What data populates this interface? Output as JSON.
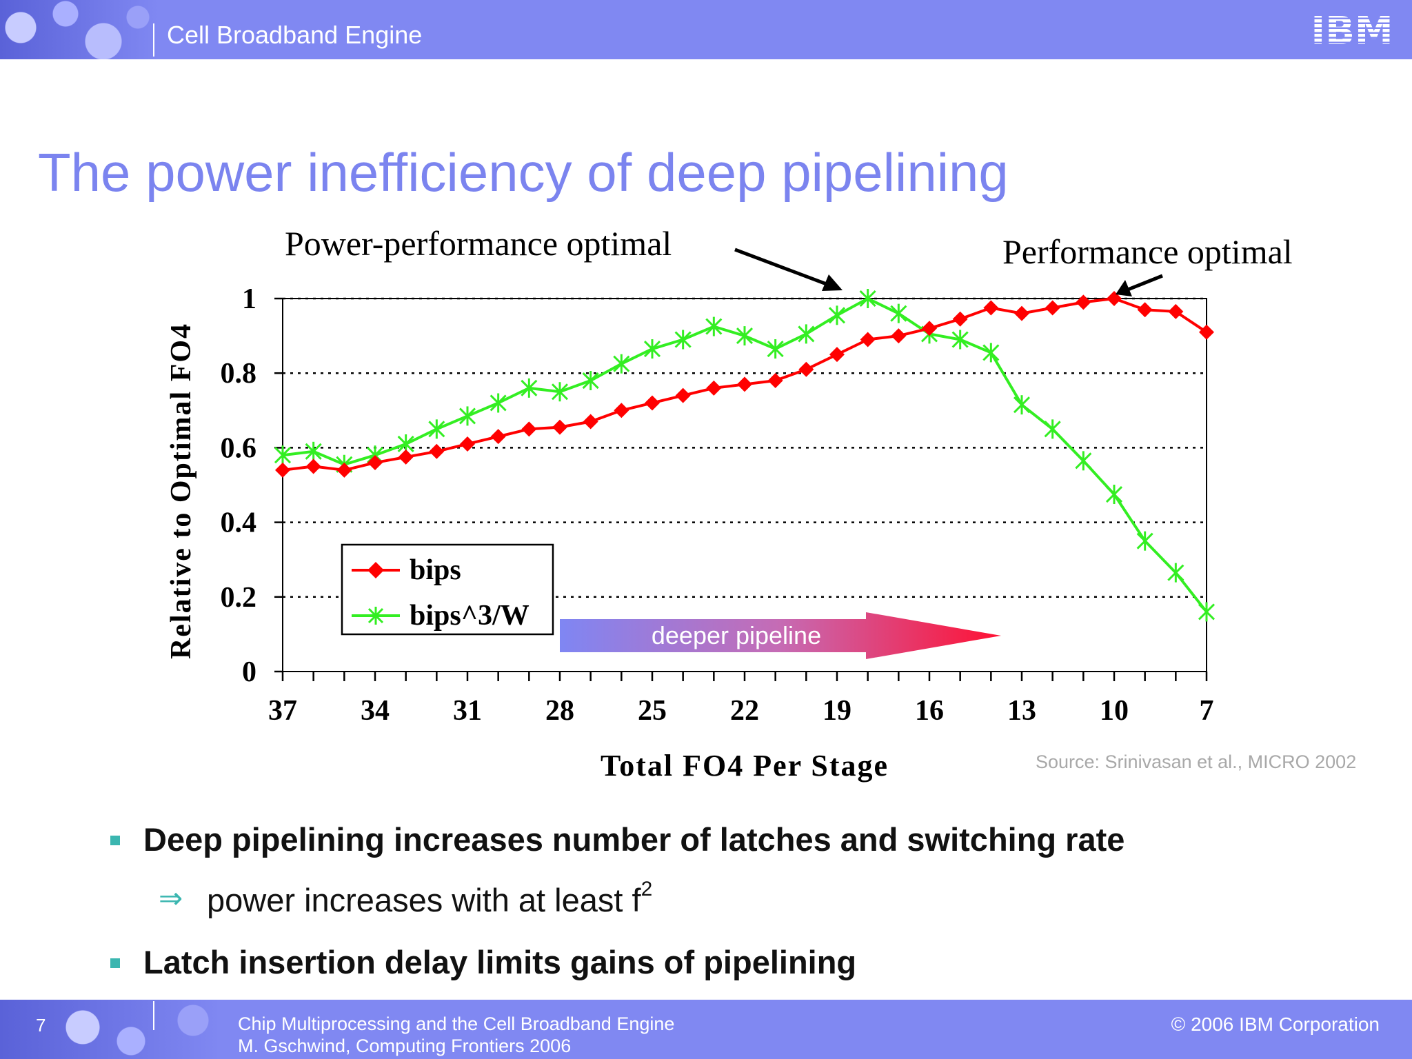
{
  "header": {
    "title": "Cell Broadband Engine",
    "logo": "IBM"
  },
  "slide": {
    "title": "The power inefficiency of deep pipelining"
  },
  "annotations": {
    "left": "Power-performance optimal",
    "right": "Performance optimal"
  },
  "arrow_banner": {
    "label": "deeper pipeline"
  },
  "source": "Source: Srinivasan et al., MICRO 2002",
  "colors": {
    "bips": "#ff0000",
    "bips3w": "#33ee22",
    "accent": "#7b84ef",
    "bullet": "#3bb6b0"
  },
  "chart_data": {
    "type": "line",
    "xlabel": "Total FO4 Per Stage",
    "ylabel": "Relative to Optimal FO4",
    "x": [
      37,
      36,
      35,
      34,
      33,
      32,
      31,
      30,
      29,
      28,
      27,
      26,
      25,
      24,
      23,
      22,
      21,
      20,
      19,
      18,
      17,
      16,
      15,
      14,
      13,
      12,
      11,
      10,
      9,
      8,
      7
    ],
    "xlim": [
      37,
      7
    ],
    "x_reversed": true,
    "ylim": [
      0,
      1
    ],
    "xticks": [
      "37",
      "34",
      "31",
      "28",
      "25",
      "22",
      "19",
      "16",
      "13",
      "10",
      "7"
    ],
    "yticks": [
      "0",
      "0.2",
      "0.4",
      "0.6",
      "0.8",
      "1"
    ],
    "grid": "dotted horizontal",
    "legend": "inside bottom-left",
    "series": [
      {
        "name": "bips",
        "marker": "diamond",
        "values": [
          0.54,
          0.55,
          0.54,
          0.56,
          0.575,
          0.59,
          0.61,
          0.63,
          0.65,
          0.655,
          0.67,
          0.7,
          0.72,
          0.74,
          0.76,
          0.77,
          0.78,
          0.81,
          0.85,
          0.89,
          0.9,
          0.92,
          0.945,
          0.975,
          0.96,
          0.975,
          0.99,
          1.0,
          0.97,
          0.965,
          0.91
        ]
      },
      {
        "name": "bips^3/W",
        "marker": "asterisk",
        "values": [
          0.58,
          0.59,
          0.555,
          0.58,
          0.61,
          0.65,
          0.685,
          0.72,
          0.76,
          0.75,
          0.78,
          0.825,
          0.865,
          0.89,
          0.925,
          0.9,
          0.865,
          0.905,
          0.955,
          1.0,
          0.96,
          0.905,
          0.89,
          0.855,
          0.715,
          0.65,
          0.565,
          0.475,
          0.35,
          0.265,
          0.16
        ]
      }
    ]
  },
  "bullets": [
    {
      "text": "Deep pipelining increases number of latches and switching rate"
    },
    {
      "arrow": "⇒",
      "text": "power increases with at least f",
      "sup": "2"
    },
    {
      "text": "Latch insertion delay limits gains of pipelining"
    }
  ],
  "footer": {
    "page": "7",
    "line1": "Chip Multiprocessing and the Cell Broadband Engine",
    "line2": "M. Gschwind, Computing Frontiers 2006",
    "copyright": "© 2006 IBM Corporation"
  }
}
